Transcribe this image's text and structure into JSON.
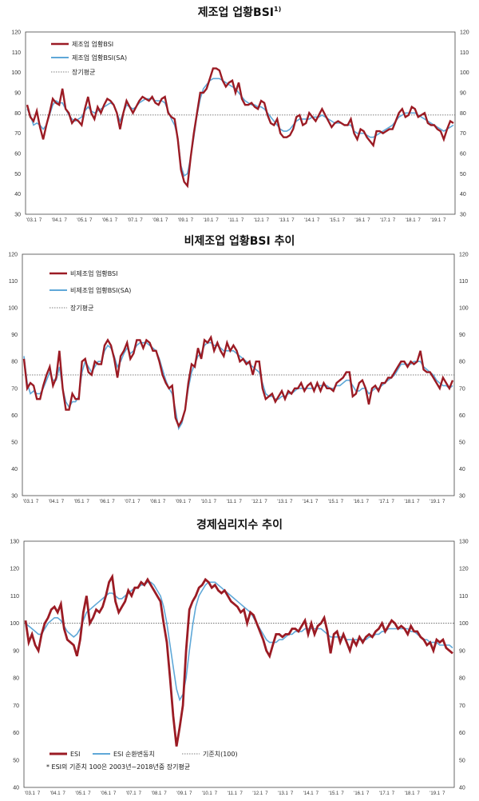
{
  "chart_data": [
    {
      "type": "line",
      "title": "제조업 업황BSI",
      "title_sup": "1)",
      "ylim": [
        30,
        120
      ],
      "y_ticks": [
        30,
        40,
        50,
        60,
        70,
        80,
        90,
        100,
        110,
        120
      ],
      "x_ticks": [
        "'03.1",
        "7",
        "'04.1",
        "7",
        "'05.1",
        "7",
        "'06.1",
        "7",
        "'07.1",
        "7",
        "'08.1",
        "7",
        "'09.1",
        "7",
        "'10.1",
        "7",
        "'11.1",
        "7",
        "'12.1",
        "7",
        "'13.1",
        "7",
        "'14.1",
        "7",
        "'15.1",
        "7",
        "'16.1",
        "7",
        "'17.1",
        "7",
        "'18.1",
        "7",
        "'19.1",
        "7"
      ],
      "legend": [
        "제조업 업황BSI",
        "제조업 업황BSI(SA)",
        "장기평균"
      ],
      "reference": 79,
      "colors": {
        "raw": "#9b1b24",
        "sa": "#5fa8d8",
        "ref": "#555555"
      },
      "series": [
        {
          "name": "제조업 업황BSI",
          "values": [
            84,
            78,
            76,
            81,
            73,
            67,
            74,
            80,
            87,
            85,
            84,
            92,
            82,
            80,
            75,
            77,
            76,
            74,
            82,
            88,
            80,
            77,
            83,
            80,
            84,
            87,
            86,
            84,
            80,
            72,
            80,
            86,
            83,
            80,
            83,
            86,
            88,
            87,
            86,
            88,
            85,
            84,
            87,
            88,
            80,
            78,
            77,
            67,
            52,
            46,
            44,
            58,
            70,
            80,
            90,
            90,
            92,
            97,
            102,
            102,
            101,
            96,
            93,
            95,
            96,
            90,
            95,
            87,
            84,
            84,
            85,
            83,
            82,
            86,
            85,
            79,
            75,
            74,
            77,
            70,
            68,
            68,
            69,
            72,
            78,
            79,
            74,
            75,
            80,
            78,
            76,
            79,
            82,
            79,
            76,
            73,
            75,
            76,
            75,
            74,
            74,
            77,
            70,
            67,
            72,
            71,
            68,
            66,
            64,
            71,
            71,
            70,
            71,
            72,
            72,
            76,
            80,
            82,
            78,
            79,
            83,
            82,
            78,
            79,
            80,
            75,
            74,
            74,
            72,
            71,
            67,
            72,
            76,
            75
          ]
        },
        {
          "name": "제조업 업황BSI(SA)",
          "values": [
            82,
            79,
            74,
            75,
            74,
            72,
            74,
            79,
            84,
            86,
            85,
            85,
            82,
            79,
            77,
            76,
            77,
            78,
            81,
            83,
            81,
            80,
            81,
            82,
            83,
            84,
            85,
            84,
            80,
            76,
            80,
            84,
            83,
            82,
            83,
            85,
            86,
            87,
            87,
            87,
            86,
            86,
            86,
            85,
            81,
            77,
            74,
            68,
            54,
            49,
            50,
            58,
            68,
            79,
            87,
            92,
            94,
            96,
            97,
            97,
            97,
            96,
            95,
            94,
            93,
            92,
            90,
            88,
            86,
            85,
            84,
            84,
            83,
            83,
            82,
            80,
            78,
            76,
            74,
            72,
            71,
            71,
            72,
            74,
            76,
            77,
            77,
            77,
            77,
            78,
            78,
            78,
            79,
            78,
            77,
            76,
            75,
            75,
            75,
            74,
            74,
            74,
            71,
            70,
            70,
            70,
            69,
            68,
            68,
            69,
            70,
            71,
            72,
            73,
            74,
            76,
            78,
            79,
            80,
            80,
            80,
            80,
            79,
            78,
            77,
            76,
            75,
            74,
            73,
            72,
            71,
            72,
            73,
            74
          ]
        }
      ]
    },
    {
      "type": "line",
      "title": "비제조업 업황BSI 추이",
      "ylim": [
        30,
        120
      ],
      "y_ticks": [
        30,
        40,
        50,
        60,
        70,
        80,
        90,
        100,
        110,
        120
      ],
      "x_ticks": [
        "'03.1",
        "7",
        "'04.1",
        "7",
        "'05.1",
        "7",
        "'06.1",
        "7",
        "'07.1",
        "7",
        "'08.1",
        "7",
        "'09.1",
        "7",
        "'10.1",
        "7",
        "'11.1",
        "7",
        "'12.1",
        "7",
        "'13.1",
        "7",
        "'14.1",
        "7",
        "'15.1",
        "7",
        "'16.1",
        "7",
        "'17.1",
        "7",
        "'18.1",
        "7",
        "'19.1",
        "7"
      ],
      "legend": [
        "비제조업 업황BSI",
        "비제조업 업황BSI(SA)",
        "장기평균"
      ],
      "reference": 75,
      "colors": {
        "raw": "#9b1b24",
        "sa": "#5fa8d8",
        "ref": "#555555"
      },
      "series": [
        {
          "name": "비제조업 업황BSI",
          "values": [
            81,
            70,
            72,
            71,
            66,
            66,
            71,
            75,
            78,
            71,
            74,
            84,
            70,
            62,
            62,
            68,
            66,
            66,
            80,
            81,
            76,
            75,
            80,
            79,
            79,
            86,
            88,
            86,
            81,
            74,
            82,
            84,
            87,
            81,
            83,
            88,
            88,
            85,
            88,
            87,
            84,
            84,
            80,
            75,
            72,
            70,
            71,
            59,
            56,
            58,
            62,
            72,
            79,
            78,
            85,
            81,
            88,
            87,
            89,
            84,
            87,
            84,
            82,
            87,
            84,
            86,
            84,
            80,
            81,
            79,
            80,
            75,
            80,
            80,
            70,
            66,
            67,
            68,
            65,
            67,
            69,
            66,
            69,
            68,
            70,
            70,
            72,
            69,
            71,
            72,
            69,
            72,
            69,
            72,
            70,
            70,
            69,
            72,
            73,
            74,
            76,
            76,
            67,
            68,
            72,
            73,
            70,
            64,
            70,
            71,
            69,
            72,
            72,
            74,
            74,
            76,
            78,
            80,
            80,
            78,
            80,
            79,
            80,
            84,
            77,
            76,
            76,
            74,
            72,
            70,
            74,
            72,
            70,
            73
          ]
        },
        {
          "name": "비제조업 업황BSI(SA)",
          "values": [
            82,
            72,
            68,
            69,
            68,
            68,
            70,
            73,
            76,
            73,
            73,
            78,
            70,
            65,
            63,
            65,
            65,
            67,
            76,
            80,
            78,
            76,
            78,
            80,
            80,
            84,
            86,
            85,
            82,
            78,
            80,
            83,
            85,
            83,
            84,
            86,
            87,
            87,
            87,
            86,
            85,
            84,
            81,
            77,
            73,
            70,
            68,
            62,
            55,
            57,
            62,
            70,
            76,
            79,
            82,
            83,
            86,
            87,
            87,
            86,
            86,
            85,
            84,
            84,
            84,
            84,
            83,
            82,
            81,
            80,
            79,
            78,
            77,
            76,
            72,
            68,
            67,
            67,
            66,
            66,
            67,
            67,
            68,
            68,
            69,
            70,
            70,
            70,
            70,
            70,
            70,
            71,
            71,
            71,
            71,
            70,
            70,
            71,
            71,
            72,
            73,
            73,
            71,
            69,
            69,
            70,
            70,
            68,
            69,
            70,
            70,
            71,
            72,
            73,
            74,
            75,
            77,
            79,
            79,
            79,
            79,
            80,
            80,
            80,
            78,
            77,
            76,
            75,
            73,
            72,
            71,
            71,
            70,
            71
          ]
        }
      ]
    },
    {
      "type": "line",
      "title": "경제심리지수 추이",
      "ylim": [
        40,
        130
      ],
      "y_ticks": [
        40,
        50,
        60,
        70,
        80,
        90,
        100,
        110,
        120,
        130
      ],
      "x_ticks": [
        "'03.1",
        "7",
        "'04.1",
        "7",
        "'05.1",
        "7",
        "'06.1",
        "7",
        "'07.1",
        "7",
        "'08.1",
        "7",
        "'09.1",
        "7",
        "'10.1",
        "7",
        "'11.1",
        "7",
        "'12.1",
        "7",
        "'13.1",
        "7",
        "'14.1",
        "7",
        "'15.1",
        "7",
        "'16.1",
        "7",
        "'17.1",
        "7",
        "'18.1",
        "7",
        "'19.1",
        "7"
      ],
      "legend": [
        "ESI",
        "ESI 순환변동치",
        "기준치(100)"
      ],
      "note": "* ESI의 기준치 100은 2003년~2018년중 장기평균",
      "reference": 100,
      "colors": {
        "raw": "#9b1b24",
        "sa": "#5fa8d8",
        "ref": "#555555"
      },
      "series": [
        {
          "name": "ESI",
          "values": [
            101,
            93,
            96,
            92,
            90,
            96,
            100,
            102,
            105,
            106,
            104,
            107,
            98,
            94,
            93,
            92,
            88,
            94,
            104,
            110,
            100,
            102,
            105,
            104,
            106,
            110,
            115,
            117,
            108,
            104,
            106,
            108,
            112,
            110,
            113,
            113,
            115,
            114,
            116,
            114,
            112,
            110,
            108,
            100,
            93,
            80,
            66,
            55,
            62,
            70,
            90,
            105,
            108,
            110,
            113,
            114,
            116,
            115,
            113,
            114,
            112,
            111,
            112,
            110,
            108,
            107,
            106,
            104,
            105,
            100,
            104,
            103,
            100,
            97,
            94,
            90,
            88,
            92,
            96,
            96,
            95,
            96,
            96,
            98,
            98,
            97,
            99,
            101,
            96,
            100,
            96,
            99,
            100,
            102,
            97,
            89,
            96,
            97,
            93,
            96,
            93,
            90,
            94,
            92,
            95,
            93,
            95,
            96,
            95,
            97,
            98,
            100,
            97,
            99,
            101,
            100,
            98,
            99,
            98,
            96,
            99,
            97,
            97,
            95,
            94,
            92,
            93,
            90,
            94,
            93,
            94,
            91,
            90,
            89
          ]
        },
        {
          "name": "ESI 순환변동치",
          "values": [
            100,
            99,
            98,
            97,
            96,
            96,
            98,
            100,
            101,
            102,
            102,
            101,
            99,
            97,
            96,
            95,
            96,
            98,
            101,
            104,
            105,
            106,
            107,
            108,
            109,
            110,
            111,
            111,
            110,
            109,
            109,
            110,
            111,
            112,
            113,
            113,
            114,
            114,
            115,
            115,
            114,
            112,
            110,
            106,
            100,
            92,
            84,
            76,
            72,
            74,
            80,
            90,
            99,
            106,
            110,
            112,
            114,
            115,
            115,
            115,
            114,
            113,
            112,
            111,
            110,
            109,
            108,
            107,
            106,
            105,
            104,
            102,
            100,
            98,
            96,
            94,
            93,
            93,
            93,
            94,
            94,
            95,
            96,
            96,
            97,
            97,
            97,
            98,
            98,
            98,
            98,
            98,
            98,
            97,
            96,
            95,
            95,
            95,
            95,
            95,
            94,
            94,
            94,
            94,
            94,
            94,
            94,
            95,
            95,
            96,
            96,
            97,
            97,
            98,
            98,
            98,
            98,
            98,
            98,
            98,
            97,
            97,
            96,
            95,
            94,
            94,
            93,
            93,
            93,
            92,
            92,
            92,
            92,
            91
          ]
        }
      ]
    }
  ]
}
